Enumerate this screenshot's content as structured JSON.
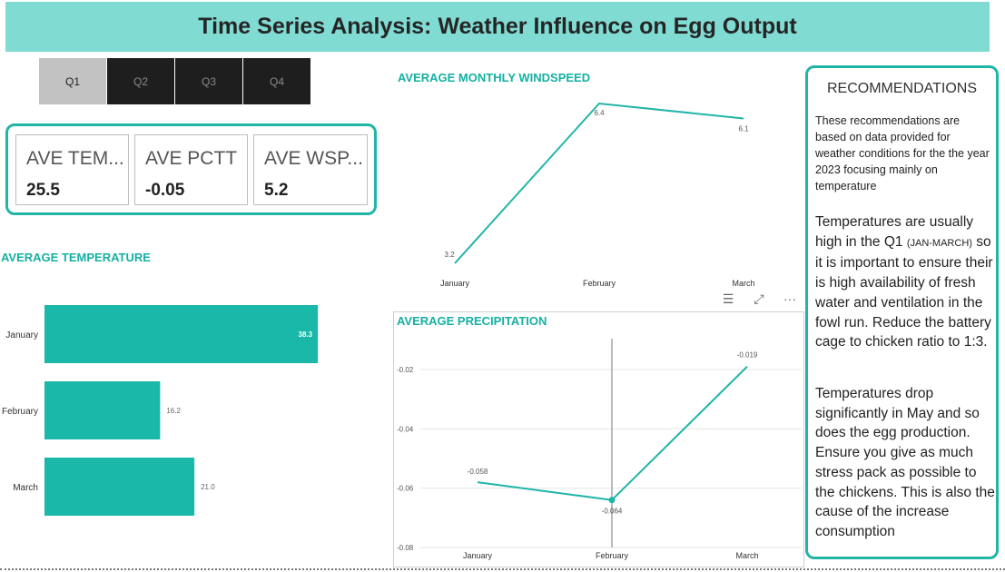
{
  "header": {
    "title": "Time Series Analysis: Weather Influence on Egg Output"
  },
  "slicer": {
    "items": [
      {
        "label": "Q1",
        "selected": true
      },
      {
        "label": "Q2",
        "selected": false
      },
      {
        "label": "Q3",
        "selected": false
      },
      {
        "label": "Q4",
        "selected": false
      }
    ]
  },
  "kpis": [
    {
      "label": "AVE TEM...",
      "value": "25.5"
    },
    {
      "label": "AVE PCTT",
      "value": "-0.05"
    },
    {
      "label": "AVE WSP...",
      "value": "5.2"
    }
  ],
  "recommendations": {
    "title": "RECOMMENDATIONS",
    "intro": "These recommendations are based on data provided for weather conditions for the the year 2023 focusing mainly on temperature",
    "p1_before": "Temperatures are usually high in the Q1 ",
    "p1_small": "(JAN-MARCH)",
    "p1_after": " so it is important to ensure their is high availability of fresh water and ventilation in the fowl run. Reduce the battery cage to chicken ratio to 1:3.",
    "p2": "Temperatures drop significantly in May and so does the egg production. Ensure you give as much stress pack as possible to the chickens. This is also the cause of the increase consumption"
  },
  "colors": {
    "accent": "#21b5a8",
    "bar": "#1ab8a9",
    "header_bg": "#80dbd3",
    "title_text": "#15b0a3"
  },
  "icons": {
    "filter": "filter-icon",
    "focus": "focus-mode-icon",
    "more": "more-options-icon"
  },
  "chart_data": [
    {
      "type": "bar",
      "title": "AVERAGE TEMPERATURE",
      "categories": [
        "January",
        "February",
        "March"
      ],
      "values": [
        38.3,
        16.2,
        21.0
      ],
      "value_labels": [
        "38.3",
        "16.2",
        "21.0"
      ],
      "orientation": "horizontal",
      "xlim": [
        0,
        40
      ]
    },
    {
      "type": "line",
      "title": "AVERAGE MONTHLY WINDSPEED",
      "categories": [
        "January",
        "February",
        "March"
      ],
      "values": [
        3.2,
        6.4,
        6.1
      ],
      "value_labels": [
        "3.2",
        "6.4",
        "6.1"
      ],
      "ylim": [
        3.0,
        6.6
      ]
    },
    {
      "type": "line",
      "title": "AVERAGE PRECIPITATION",
      "categories": [
        "January",
        "February",
        "March"
      ],
      "values": [
        -0.058,
        -0.064,
        -0.019
      ],
      "value_labels": [
        "-0.058",
        "-0.064",
        "-0.019"
      ],
      "yticks": [
        -0.02,
        -0.04,
        -0.06,
        -0.08
      ],
      "ytick_labels": [
        "-0.02",
        "-0.04",
        "-0.06",
        "-0.08"
      ],
      "ylim": [
        -0.08,
        -0.01
      ],
      "grid": true,
      "highlight": "February"
    }
  ]
}
